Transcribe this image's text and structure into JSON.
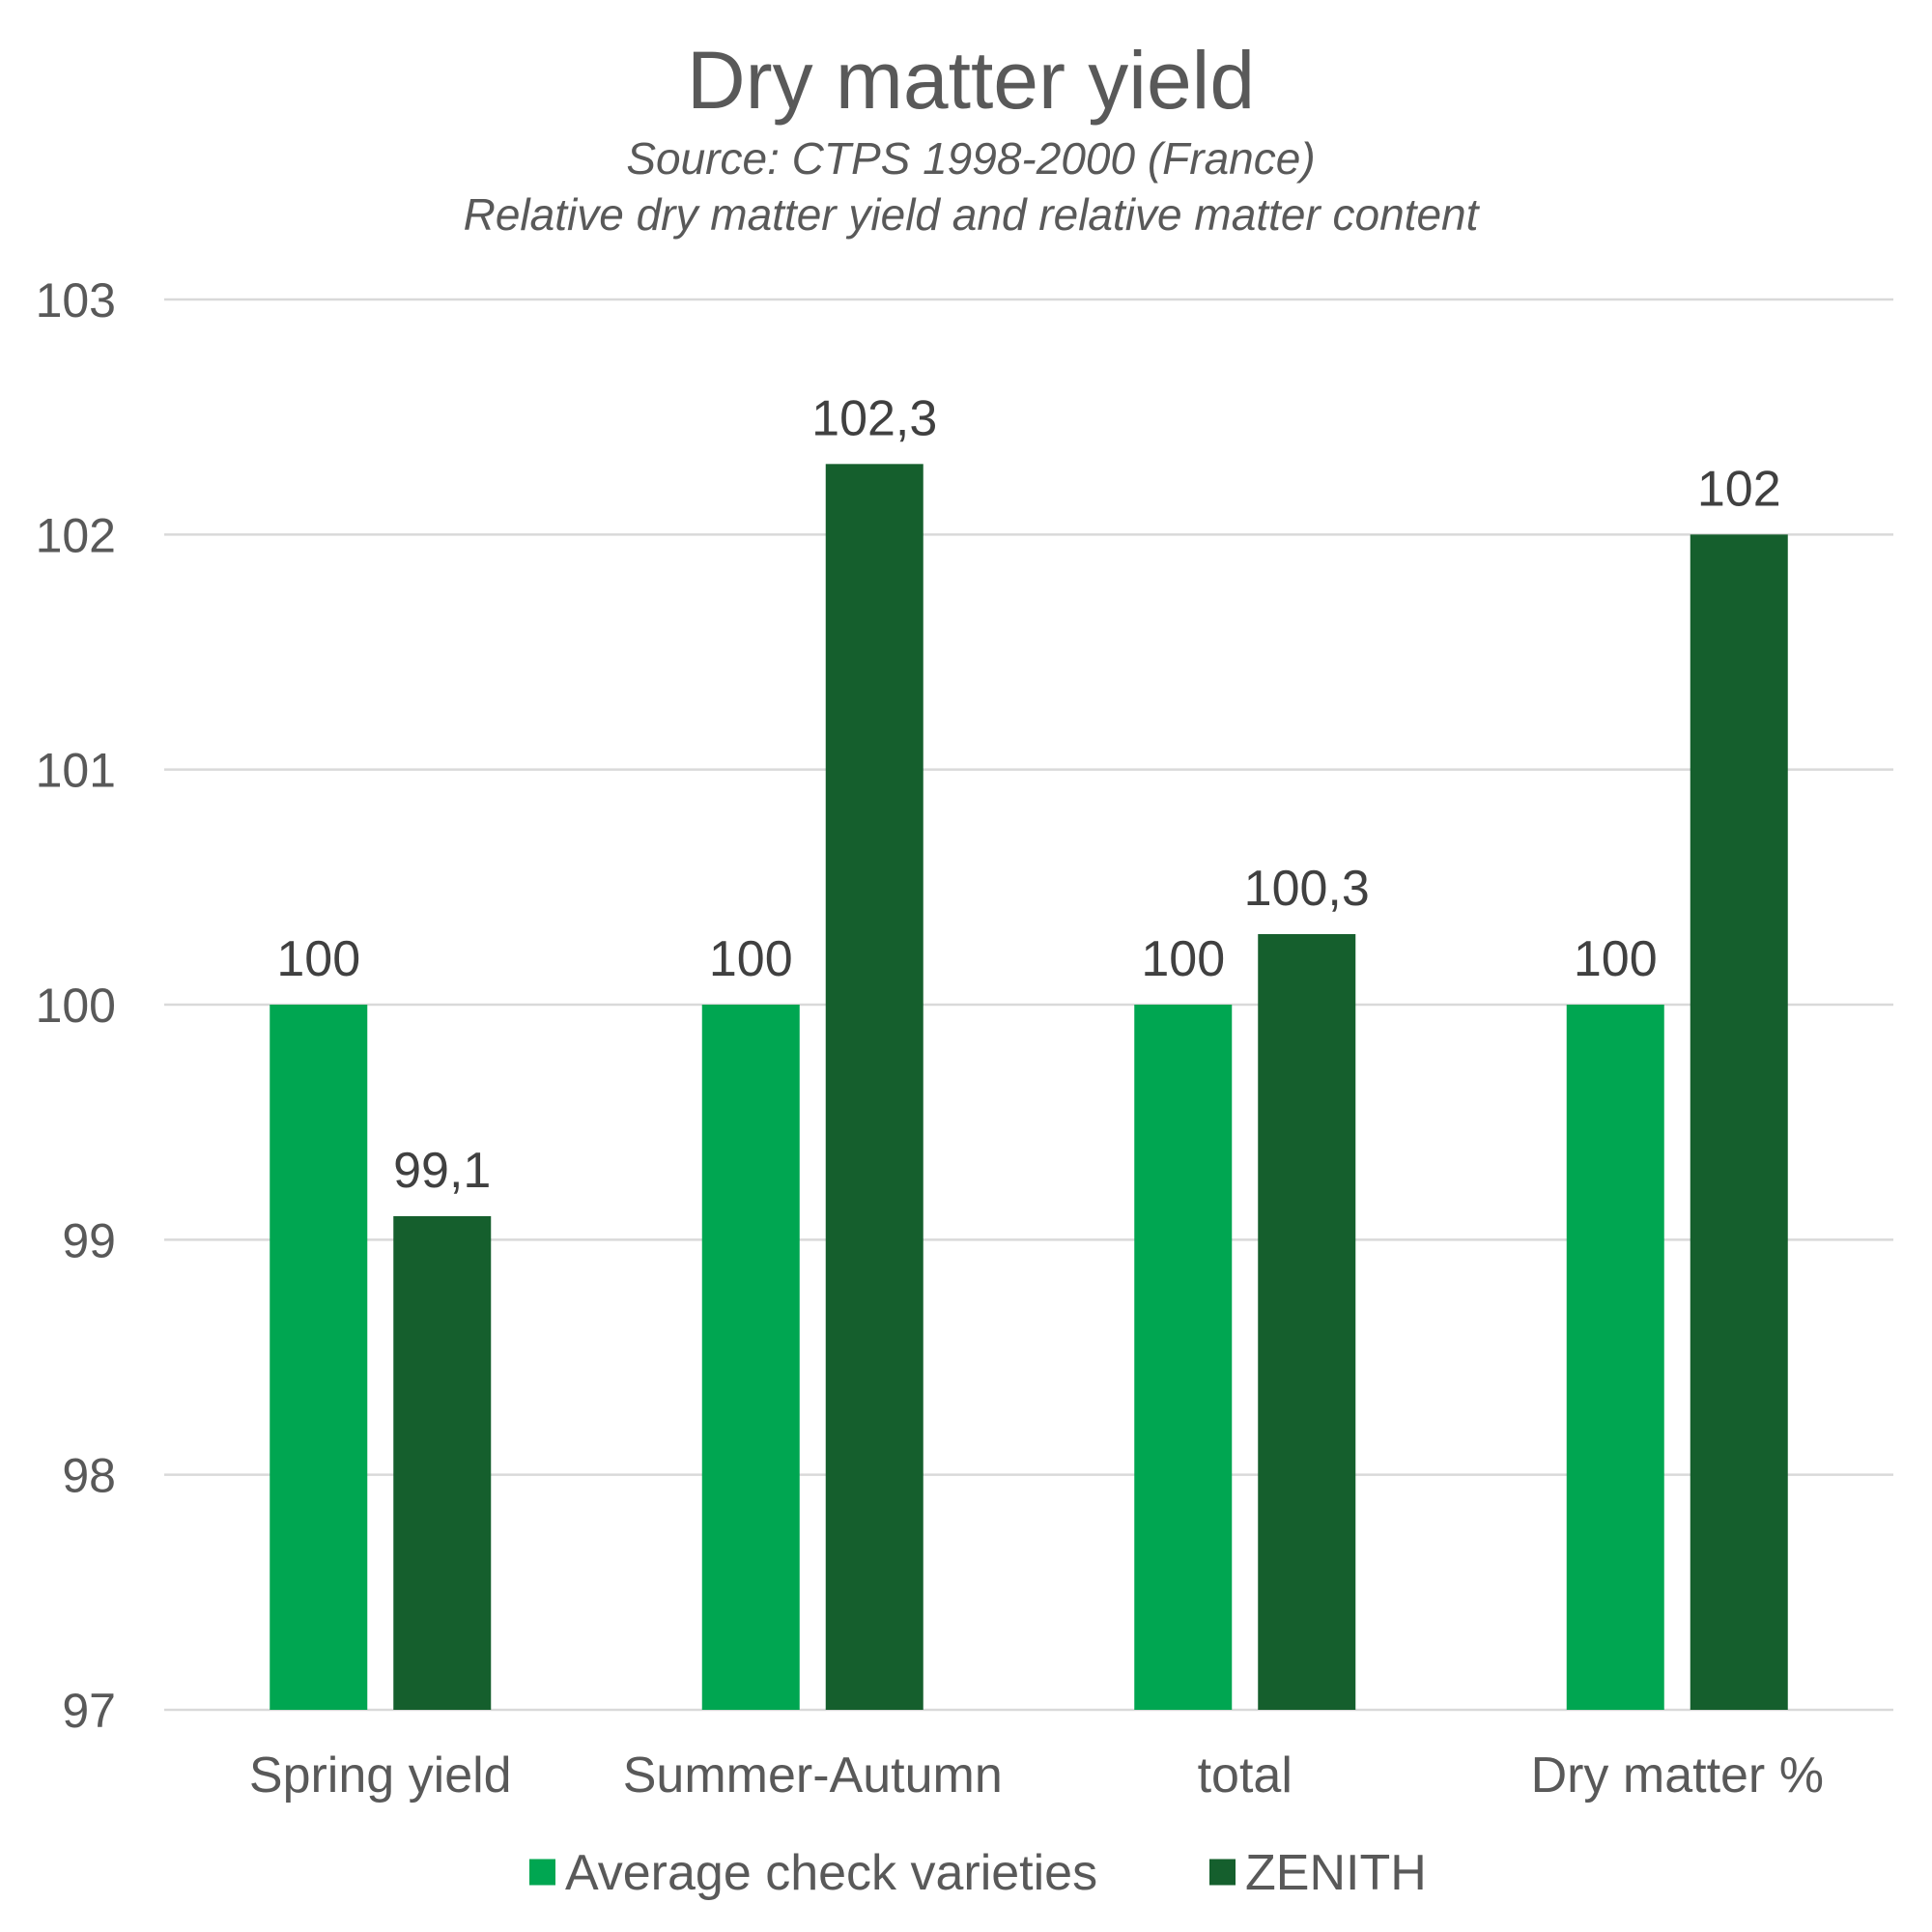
{
  "chart_data": {
    "type": "bar",
    "title": "Dry matter yield",
    "subtitle_lines": [
      "Source: CTPS 1998-2000 (France)",
      "Relative dry matter yield and relative matter content"
    ],
    "xlabel": "",
    "ylabel": "",
    "categories": [
      "Spring yield",
      "Summer-Autumn",
      "total",
      "Dry matter %"
    ],
    "series": [
      {
        "name": "Average check varieties",
        "color": "#00a651",
        "values": [
          100,
          100,
          100,
          100
        ],
        "labels": [
          "100",
          "100",
          "100",
          "100"
        ]
      },
      {
        "name": "ZENITH",
        "color": "#155f2d",
        "values": [
          99.1,
          102.3,
          100.3,
          102
        ],
        "labels": [
          "99,1",
          "102,3",
          "100,3",
          "102"
        ]
      }
    ],
    "ylim": [
      97,
      103
    ],
    "yticks": [
      97,
      98,
      99,
      100,
      101,
      102,
      103
    ],
    "grid": true,
    "legend": "bottom"
  }
}
